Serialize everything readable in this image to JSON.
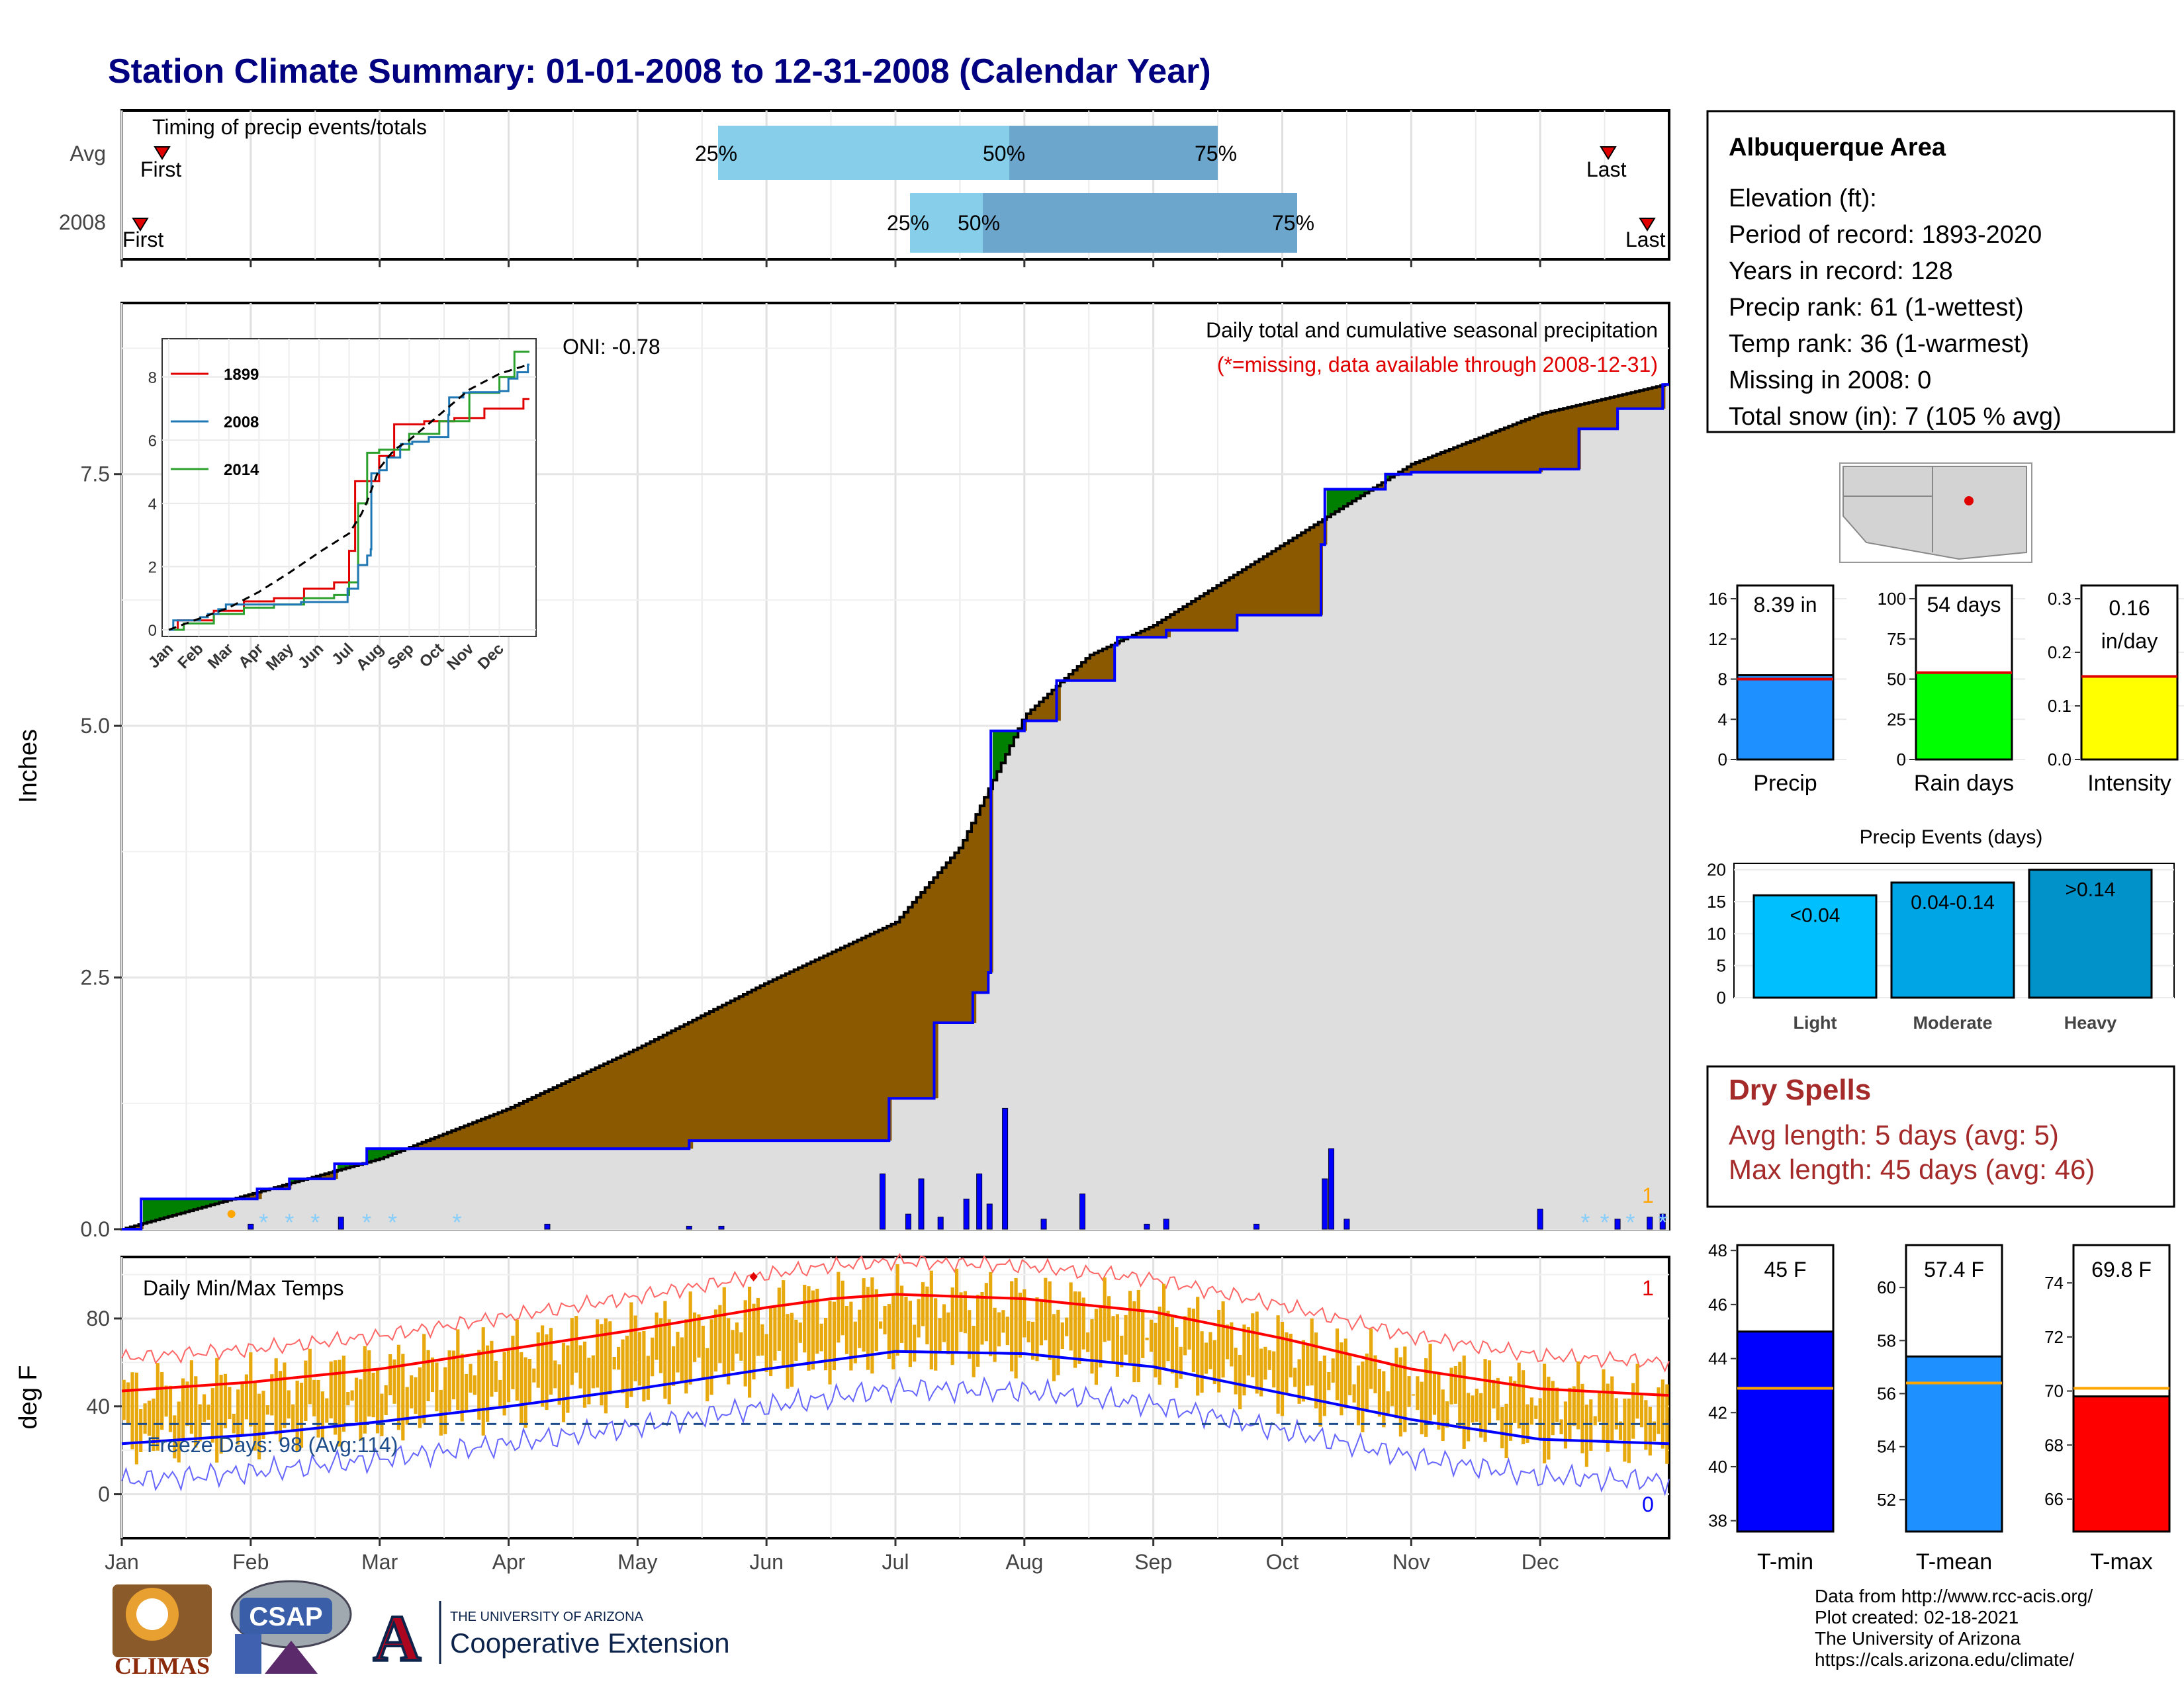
{
  "title": "Station Climate Summary: 01-01-2008 to 12-31-2008 (Calendar Year)",
  "months": [
    "Jan",
    "Feb",
    "Mar",
    "Apr",
    "May",
    "Jun",
    "Jul",
    "Aug",
    "Sep",
    "Oct",
    "Nov",
    "Dec"
  ],
  "timing": {
    "label": "Timing of precip events/totals",
    "rows": [
      {
        "label": "Avg",
        "first": "First",
        "last": "Last",
        "p25": "25%",
        "p50": "50%",
        "p75": "75%"
      },
      {
        "label": "2008",
        "first": "First",
        "last": "Last",
        "p25": "25%",
        "p50": "50%",
        "p75": "75%"
      }
    ]
  },
  "precip_panel": {
    "ylabel": "Inches",
    "yticks": [
      "0.0",
      "2.5",
      "5.0",
      "7.5"
    ],
    "oni": "ONI: -0.78",
    "caption": "Daily total and cumulative seasonal precipitation",
    "missing_note": "(*=missing, data available through 2008-12-31)",
    "count_note": "1"
  },
  "inset": {
    "legend": [
      "1899",
      "2008",
      "2014"
    ],
    "yticks": [
      "0",
      "2",
      "4",
      "6",
      "8"
    ],
    "xticks": [
      "Jan",
      "Feb",
      "Mar",
      "Apr",
      "May",
      "Jun",
      "Jul",
      "Aug",
      "Sep",
      "Oct",
      "Nov",
      "Dec"
    ]
  },
  "temp_panel": {
    "ylabel": "deg F",
    "label": "Daily Min/Max Temps",
    "yticks": [
      "0",
      "40",
      "80"
    ],
    "freeze": "Freeze Days: 98 (Avg:114)",
    "count_top": "1",
    "count_bottom": "0"
  },
  "station": {
    "name": "Albuquerque Area",
    "lines": [
      "Elevation (ft):",
      "Period of record: 1893-2020",
      "Years in record: 128",
      "Precip rank: 61 (1-wettest)",
      "Temp rank: 36 (1-warmest)",
      "Missing in 2008: 0",
      "Total snow (in): 7 (105 % avg)"
    ]
  },
  "mini_bars": [
    {
      "label": "Precip",
      "value_text": "8.39 in",
      "value": 8.39,
      "avg": 8.0,
      "ymax": 16,
      "yticks": [
        "0",
        "4",
        "8",
        "12",
        "16"
      ],
      "color": "#1E90FF"
    },
    {
      "label": "Rain days",
      "value_text": "54 days",
      "value": 54,
      "avg": 54,
      "ymax": 100,
      "yticks": [
        "0",
        "25",
        "50",
        "75",
        "100"
      ],
      "color": "#00FF00"
    },
    {
      "label": "Intensity",
      "value_text": "0.16 in/day",
      "value_line1": "0.16",
      "value_line2": "in/day",
      "value": 0.155,
      "avg": 0.155,
      "ymax": 0.3,
      "yticks": [
        "0.0",
        "0.1",
        "0.2",
        "0.3"
      ],
      "color": "#FFFF00"
    }
  ],
  "events": {
    "title": "Precip Events (days)",
    "yticks": [
      "0",
      "5",
      "10",
      "15",
      "20"
    ],
    "bars": [
      {
        "label": "Light",
        "range": "<0.04",
        "value": 16,
        "color": "#00BFFF"
      },
      {
        "label": "Moderate",
        "range": "0.04-0.14",
        "value": 18,
        "color": "#00A5E6"
      },
      {
        "label": "Heavy",
        "range": ">0.14",
        "value": 20,
        "color": "#0092C8"
      }
    ]
  },
  "dry_spells": {
    "title": "Dry Spells",
    "avg": "Avg length: 5 days (avg: 5)",
    "max": "Max length: 45 days (avg: 46)"
  },
  "temp_bars": [
    {
      "label": "T-min",
      "value_text": "45 F",
      "value": 45,
      "avg": 42.9,
      "ymin": 37.6,
      "ymax": 48.2,
      "yticks": [
        38,
        40,
        42,
        44,
        46,
        48
      ],
      "color": "#0000FF"
    },
    {
      "label": "T-mean",
      "value_text": "57.4 F",
      "value": 57.4,
      "avg": 56.4,
      "ymin": 50.8,
      "ymax": 61.6,
      "yticks": [
        52,
        54,
        56,
        58,
        60
      ],
      "color": "#1E90FF"
    },
    {
      "label": "T-max",
      "value_text": "69.8 F",
      "value": 69.8,
      "avg": 70.1,
      "ymin": 64.8,
      "ymax": 75.4,
      "yticks": [
        66,
        68,
        70,
        72,
        74
      ],
      "color": "#FF0000"
    }
  ],
  "footer": [
    "Data from http://www.rcc-acis.org/",
    "Plot created: 02-18-2021",
    "The University of Arizona",
    "https://cals.arizona.edu/climate/"
  ],
  "logos": {
    "climas": "CLIMAS",
    "csap": "CSAP",
    "ua_small": "THE UNIVERSITY OF ARIZONA",
    "ua_big": "Cooperative Extension",
    "ua_letter": "A"
  },
  "colors": {
    "title": "#000080",
    "above": "#8B5A00",
    "below": "#008000",
    "daily": "#0000FF",
    "tmax": "#FF0000",
    "tmin": "#0000FF",
    "bars": "#E8A90F",
    "dry": "#A52A2A"
  },
  "chart_data": {
    "type": "line",
    "cumulative_2008": {
      "x_month": [
        0,
        0.15,
        1.0,
        1.05,
        1.3,
        1.65,
        1.9,
        3.3,
        4.4,
        5.9,
        5.95,
        6.3,
        6.6,
        6.72,
        6.74,
        7.0,
        7.25,
        7.7,
        7.72,
        8.1,
        8.65,
        9.3,
        9.33,
        9.8,
        10.0,
        11.0,
        11.3,
        11.6,
        11.95,
        12
      ],
      "y": [
        0,
        0.3,
        0.3,
        0.4,
        0.5,
        0.65,
        0.8,
        0.8,
        0.88,
        0.88,
        1.3,
        2.05,
        2.35,
        2.55,
        4.95,
        5.05,
        5.45,
        5.8,
        5.88,
        5.95,
        6.1,
        6.8,
        7.35,
        7.5,
        7.52,
        7.55,
        7.95,
        8.15,
        8.39,
        8.39
      ]
    },
    "average_cumulative": {
      "x_month": [
        0,
        1,
        2,
        3,
        4,
        5,
        6,
        6.5,
        7,
        7.5,
        8,
        9,
        10,
        11,
        12
      ],
      "y": [
        0,
        0.35,
        0.7,
        1.2,
        1.8,
        2.45,
        3.05,
        3.8,
        5.1,
        5.7,
        6.0,
        6.8,
        7.6,
        8.1,
        8.4
      ]
    },
    "daily_precip_in": [
      {
        "m": 1.0,
        "v": 0.05
      },
      {
        "m": 1.7,
        "v": 0.12
      },
      {
        "m": 3.3,
        "v": 0.05
      },
      {
        "m": 4.4,
        "v": 0.03
      },
      {
        "m": 4.65,
        "v": 0.03
      },
      {
        "m": 5.9,
        "v": 0.55
      },
      {
        "m": 6.1,
        "v": 0.15
      },
      {
        "m": 6.2,
        "v": 0.5
      },
      {
        "m": 6.35,
        "v": 0.12
      },
      {
        "m": 6.55,
        "v": 0.3
      },
      {
        "m": 6.65,
        "v": 0.55
      },
      {
        "m": 6.73,
        "v": 0.25
      },
      {
        "m": 6.85,
        "v": 1.2
      },
      {
        "m": 7.15,
        "v": 0.1
      },
      {
        "m": 7.45,
        "v": 0.35
      },
      {
        "m": 7.95,
        "v": 0.05
      },
      {
        "m": 8.1,
        "v": 0.1
      },
      {
        "m": 8.8,
        "v": 0.05
      },
      {
        "m": 9.33,
        "v": 0.5
      },
      {
        "m": 9.38,
        "v": 0.8
      },
      {
        "m": 9.5,
        "v": 0.1
      },
      {
        "m": 11.0,
        "v": 0.2
      },
      {
        "m": 11.6,
        "v": 0.1
      },
      {
        "m": 11.85,
        "v": 0.12
      },
      {
        "m": 11.95,
        "v": 0.15
      }
    ],
    "normal_tmax_F": {
      "x_month": [
        0,
        1,
        2,
        3,
        4,
        5,
        5.5,
        6,
        7,
        8,
        9,
        10,
        11,
        12
      ],
      "y": [
        47,
        51,
        57,
        66,
        75,
        85,
        89,
        91,
        89,
        83,
        71,
        57,
        48,
        45
      ]
    },
    "normal_tmin_F": {
      "x_month": [
        0,
        1,
        2,
        3,
        4,
        5,
        5.5,
        6,
        7,
        8,
        9,
        10,
        11,
        12
      ],
      "y": [
        23,
        27,
        33,
        40,
        48,
        57,
        61,
        65,
        64,
        58,
        46,
        34,
        25,
        23
      ]
    },
    "freeze_threshold_F": 32,
    "ylim_precip": [
      0,
      9.2
    ],
    "ylim_temp": [
      -20,
      108
    ]
  }
}
